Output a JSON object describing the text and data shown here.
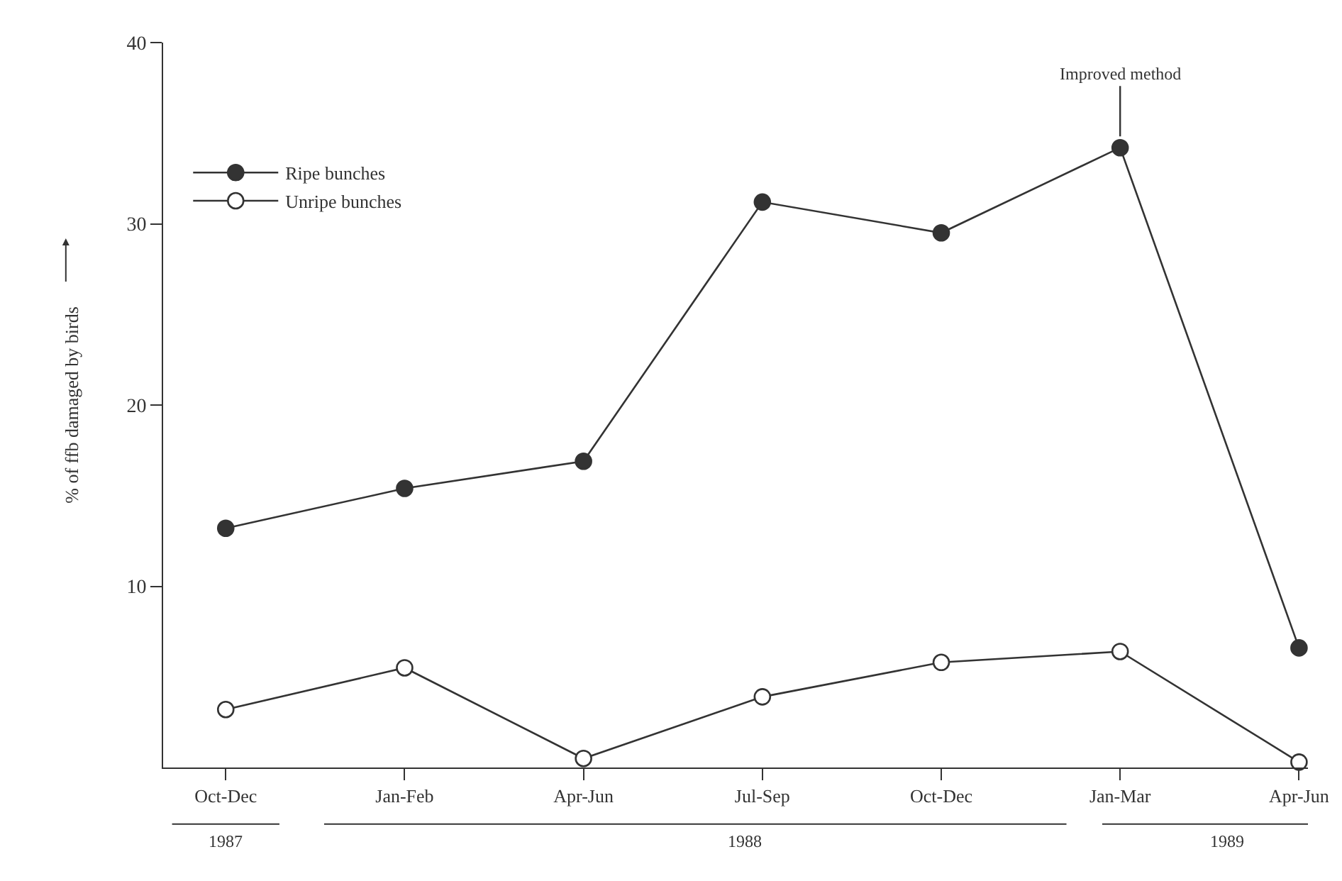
{
  "chart_data": {
    "type": "line",
    "ylabel": "% of ffb damaged by birds",
    "categories": [
      "Oct-Dec",
      "Jan-Feb",
      "Apr-Jun",
      "Jul-Sep",
      "Oct-Dec",
      "Jan-Mar",
      "Apr-Jun"
    ],
    "series": [
      {
        "name": "Ripe bunches",
        "color": "#333333",
        "values": [
          13.2,
          15.4,
          16.9,
          31.2,
          29.5,
          34.2,
          6.6
        ]
      },
      {
        "name": "Unripe bunches",
        "color": "#ffffff",
        "values": [
          3.2,
          5.5,
          0.5,
          3.9,
          5.8,
          6.4,
          0.3
        ]
      }
    ],
    "ylim": [
      0,
      40
    ],
    "yticks": [
      10,
      20,
      30,
      40
    ],
    "annotations": [
      {
        "text": "Improved method",
        "x": "Jan-Mar",
        "y": 34.2
      },
      "1987",
      "1988",
      "1989"
    ],
    "grid": false,
    "legend": "top left",
    "marker": "circle",
    "line_style": "solid"
  }
}
